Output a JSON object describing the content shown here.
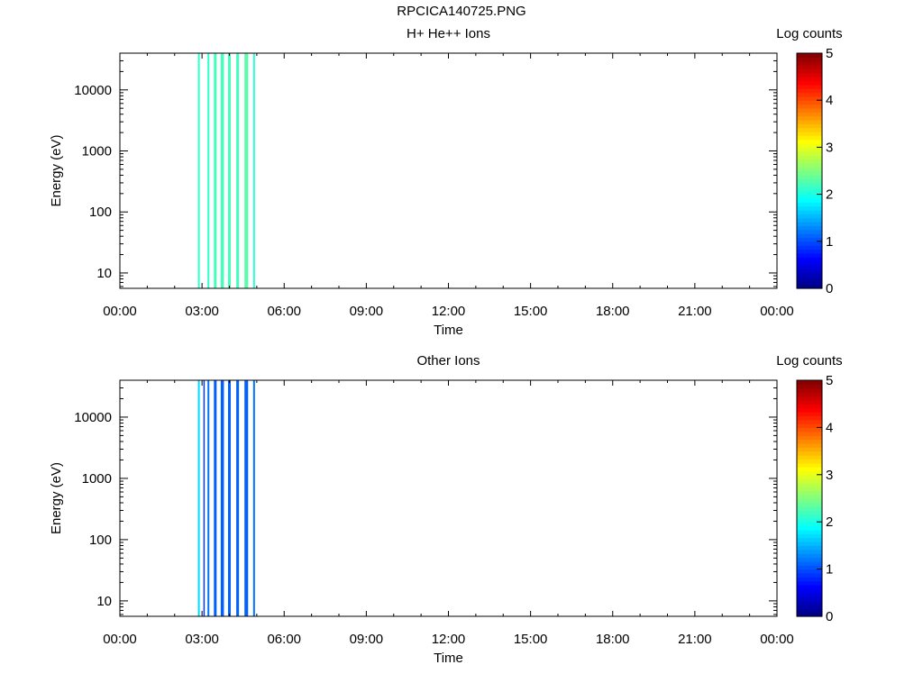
{
  "figure": {
    "title": "RPCICA140725.PNG"
  },
  "colorbar": {
    "label": "Log counts",
    "range": [
      0,
      5
    ],
    "tick_labels": [
      "0",
      "1",
      "2",
      "3",
      "4",
      "5"
    ],
    "colormap": "jet"
  },
  "chart_data": [
    {
      "type": "heatmap",
      "title": "H+ He++ Ions",
      "xlabel": "Time",
      "ylabel": "Energy (eV)",
      "x_range": [
        "00:00",
        "24:00"
      ],
      "x_tick_labels": [
        "00:00",
        "03:00",
        "06:00",
        "09:00",
        "12:00",
        "15:00",
        "18:00",
        "21:00",
        "00:00"
      ],
      "y_scale": "log",
      "y_range": [
        5.6,
        40000
      ],
      "y_tick_labels": [
        "10",
        "100",
        "1000",
        "10000"
      ],
      "grid": false,
      "log_counts_range": [
        0,
        5
      ],
      "bands": [
        {
          "start": "02:51",
          "end": "02:55",
          "log_counts": 2.1
        },
        {
          "start": "03:12",
          "end": "03:16",
          "log_counts": 2.1
        },
        {
          "start": "03:26",
          "end": "03:32",
          "log_counts": 2.2
        },
        {
          "start": "03:41",
          "end": "03:48",
          "log_counts": 2.2
        },
        {
          "start": "03:57",
          "end": "04:03",
          "log_counts": 2.2
        },
        {
          "start": "04:15",
          "end": "04:21",
          "log_counts": 2.2
        },
        {
          "start": "04:33",
          "end": "04:41",
          "log_counts": 2.3
        },
        {
          "start": "04:52",
          "end": "04:56",
          "log_counts": 2.1
        }
      ]
    },
    {
      "type": "heatmap",
      "title": "Other Ions",
      "xlabel": "Time",
      "ylabel": "Energy (eV)",
      "x_range": [
        "00:00",
        "24:00"
      ],
      "x_tick_labels": [
        "00:00",
        "03:00",
        "06:00",
        "09:00",
        "12:00",
        "15:00",
        "18:00",
        "21:00",
        "00:00"
      ],
      "y_scale": "log",
      "y_range": [
        5.6,
        40000
      ],
      "y_tick_labels": [
        "10",
        "100",
        "1000",
        "10000"
      ],
      "grid": false,
      "log_counts_range": [
        0,
        5
      ],
      "bands": [
        {
          "start": "02:51",
          "end": "02:55",
          "log_counts": 1.7
        },
        {
          "start": "03:03",
          "end": "03:05",
          "log_counts": 0.9
        },
        {
          "start": "03:12",
          "end": "03:16",
          "log_counts": 1.2
        },
        {
          "start": "03:26",
          "end": "03:32",
          "log_counts": 1.1
        },
        {
          "start": "03:41",
          "end": "03:48",
          "log_counts": 1.1
        },
        {
          "start": "03:57",
          "end": "04:03",
          "log_counts": 1.1
        },
        {
          "start": "04:15",
          "end": "04:21",
          "log_counts": 1.1
        },
        {
          "start": "04:33",
          "end": "04:41",
          "log_counts": 1.1
        },
        {
          "start": "04:52",
          "end": "04:56",
          "log_counts": 1.2
        }
      ]
    }
  ]
}
